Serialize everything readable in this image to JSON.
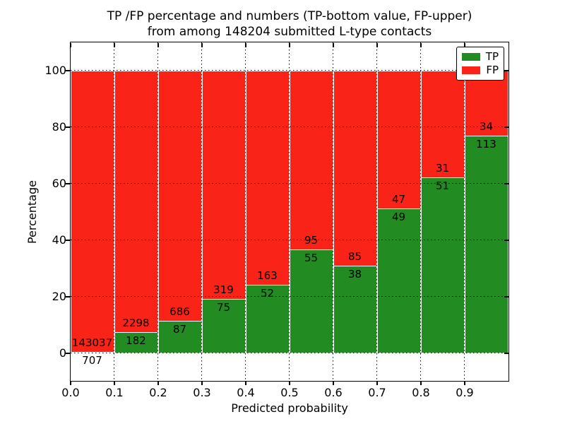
{
  "chart_data": {
    "type": "bar",
    "subtype": "stacked-percentage",
    "title_line1": "TP /FP percentage and numbers (TP-bottom value, FP-upper)",
    "title_line2": "from among 148204 submitted L-type contacts",
    "total_submitted": 148204,
    "xlabel": "Predicted probability",
    "ylabel": "Percentage",
    "xlim": [
      0.0,
      1.0
    ],
    "ylim": [
      -10,
      110
    ],
    "grid": true,
    "xticks": [
      "0.0",
      "0.1",
      "0.2",
      "0.3",
      "0.4",
      "0.5",
      "0.6",
      "0.7",
      "0.8",
      "0.9"
    ],
    "yticks": [
      0,
      20,
      40,
      60,
      80,
      100
    ],
    "colors": {
      "tp": "#228b22",
      "fp": "#fa2318"
    },
    "legend": {
      "position": "upper right",
      "entries": [
        {
          "label": "TP"
        },
        {
          "label": "FP"
        }
      ]
    },
    "bins": [
      {
        "x_start": 0.0,
        "tp": 707,
        "fp": 143037
      },
      {
        "x_start": 0.1,
        "tp": 182,
        "fp": 2298
      },
      {
        "x_start": 0.2,
        "tp": 87,
        "fp": 686
      },
      {
        "x_start": 0.3,
        "tp": 75,
        "fp": 319
      },
      {
        "x_start": 0.4,
        "tp": 52,
        "fp": 163
      },
      {
        "x_start": 0.5,
        "tp": 55,
        "fp": 95
      },
      {
        "x_start": 0.6,
        "tp": 38,
        "fp": 85
      },
      {
        "x_start": 0.7,
        "tp": 49,
        "fp": 47
      },
      {
        "x_start": 0.8,
        "tp": 51,
        "fp": 31
      },
      {
        "x_start": 0.9,
        "tp": 113,
        "fp": 34
      }
    ]
  }
}
